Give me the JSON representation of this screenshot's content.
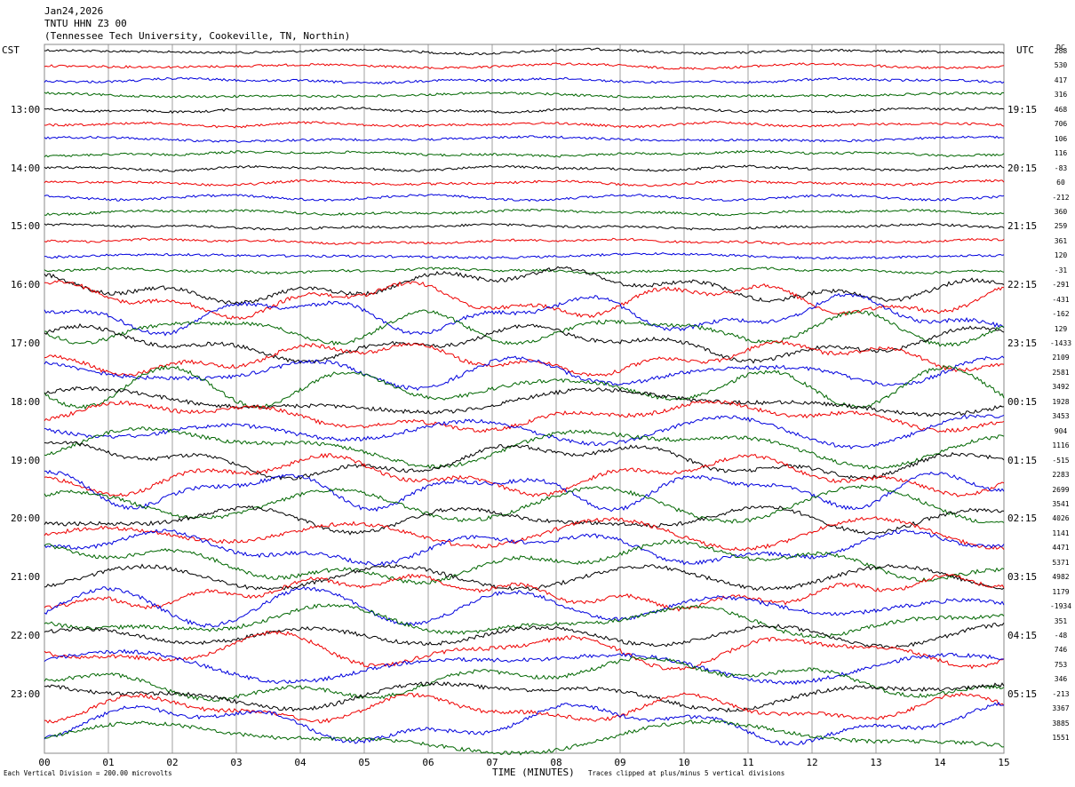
{
  "header": {
    "date": "Jan24,2026",
    "station": "TNTU HHN Z3 00",
    "location": "(Tennessee Tech University, Cookeville, TN, Northin)"
  },
  "left_tz": "CST",
  "right_tz": "UTC",
  "dc_header": "DC",
  "footer": {
    "scale": "Each Vertical Division =  200.00 microvolts",
    "xlabel": "TIME (MINUTES)",
    "clip_note": "Traces clipped at plus/minus 5 vertical divisions"
  },
  "colors": {
    "black": "#000000",
    "red": "#ee0000",
    "blue": "#0000dd",
    "green": "#006600",
    "grid": "#888888"
  },
  "chart_data": {
    "type": "line",
    "title": "Jan24,2026 TNTU HHN Z3 00",
    "xlabel": "TIME (MINUTES)",
    "xlim": [
      0,
      15
    ],
    "x_ticks": [
      "00",
      "01",
      "02",
      "03",
      "04",
      "05",
      "06",
      "07",
      "08",
      "09",
      "10",
      "11",
      "12",
      "13",
      "14",
      "15"
    ],
    "cst_ticks": [
      "13:00",
      "14:00",
      "15:00",
      "16:00",
      "17:00",
      "18:00",
      "19:00",
      "20:00",
      "21:00",
      "22:00",
      "23:00"
    ],
    "utc_ticks": [
      "19:15",
      "20:15",
      "21:15",
      "22:15",
      "23:15",
      "00:15",
      "01:15",
      "02:15",
      "03:15",
      "04:15",
      "05:15"
    ],
    "trace_color_cycle": [
      "black",
      "red",
      "blue",
      "green"
    ],
    "dc_offsets": [
      "288",
      "530",
      "417",
      "316",
      "468",
      "706",
      "106",
      "116",
      "-83",
      "60",
      "-212",
      "360",
      "259",
      "361",
      "120",
      "-31",
      "-291",
      "-431",
      "-162",
      "129",
      "-1433",
      "2109",
      "2581",
      "3492",
      "1928",
      "3453",
      "904",
      "1116",
      "-515",
      "2283",
      "2699",
      "3541",
      "4026",
      "1141",
      "4471",
      "5371",
      "4982",
      "1179",
      "-1934",
      "351",
      "-48",
      "746",
      "753",
      "346",
      "-213",
      "3367",
      "3885",
      "1551"
    ]
  }
}
